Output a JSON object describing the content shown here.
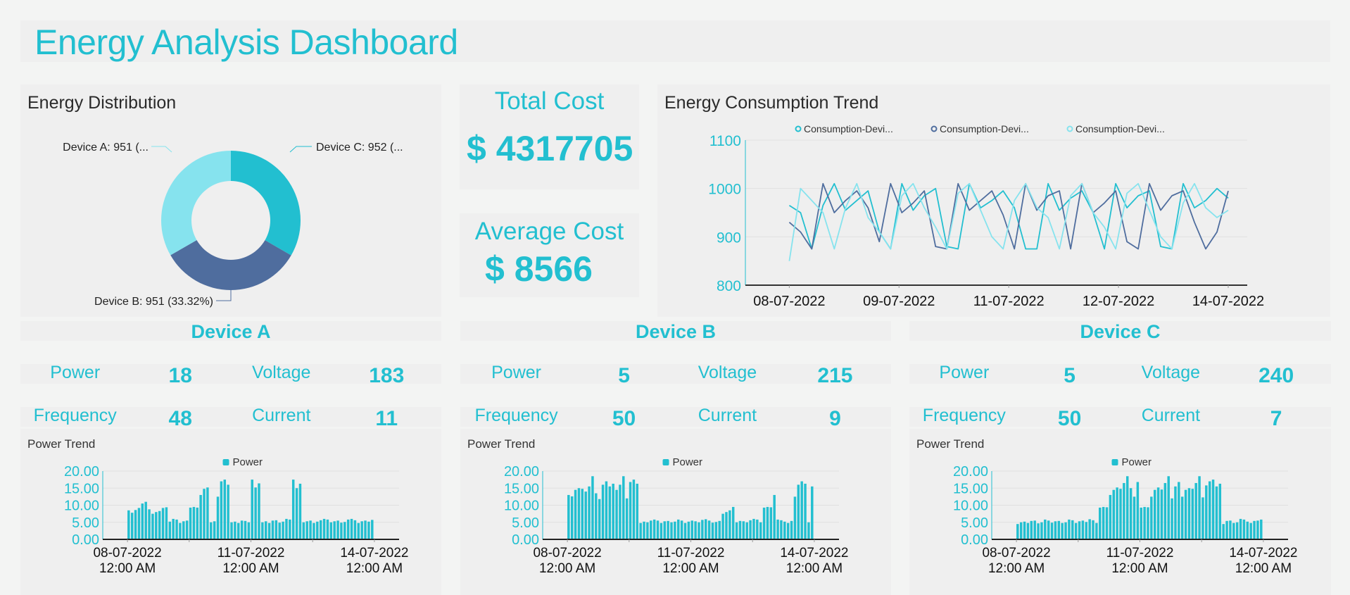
{
  "header": {
    "title": "Energy Analysis Dashboard"
  },
  "colors": {
    "accent": "#22bfd0",
    "device_a": "#86e3ee",
    "device_b": "#4f6d9e",
    "device_c": "#22bfd0",
    "panel": "#efefef",
    "background": "#f3f4f3"
  },
  "distribution": {
    "title": "Energy Distribution",
    "chart_data": {
      "type": "pie",
      "donut": true,
      "slices": [
        {
          "name": "Device C",
          "value": 952,
          "label": "Device C: 952 (...",
          "color": "#22bfd0"
        },
        {
          "name": "Device B",
          "value": 951,
          "label": "Device B: 951 (33.32%)",
          "color": "#4f6d9e"
        },
        {
          "name": "Device A",
          "value": 951,
          "label": "Device A: 951 (...",
          "color": "#86e3ee"
        }
      ]
    }
  },
  "total_cost": {
    "label": "Total Cost",
    "value": "$ 4317705"
  },
  "average_cost": {
    "label": "Average Cost",
    "value": "$ 8566"
  },
  "trend": {
    "title": "Energy Consumption Trend",
    "chart_data": {
      "type": "line",
      "x_range": [
        "08-07-2022",
        "14-07-2022"
      ],
      "x_tick_labels": [
        "08-07-2022",
        "09-07-2022",
        "11-07-2022",
        "12-07-2022",
        "14-07-2022"
      ],
      "ylim": [
        800,
        1100
      ],
      "y_ticks": [
        "800",
        "900",
        "1000",
        "1100"
      ],
      "grid": true,
      "legend_position": "top",
      "series": [
        {
          "name": "Consumption-Devi...",
          "color": "#22bfd0",
          "values": [
            965,
            950,
            875,
            965,
            1010,
            955,
            975,
            995,
            910,
            875,
            1010,
            955,
            985,
            1000,
            880,
            875,
            1010,
            960,
            975,
            995,
            960,
            875,
            875,
            1010,
            955,
            980,
            995,
            950,
            875,
            1010,
            960,
            985,
            995,
            880,
            875,
            1010,
            960,
            975,
            1000,
            980
          ]
        },
        {
          "name": "Consumption-Devi...",
          "color": "#4f6d9e",
          "values": [
            930,
            910,
            875,
            1010,
            950,
            975,
            995,
            960,
            890,
            1010,
            950,
            970,
            995,
            880,
            875,
            1010,
            955,
            975,
            995,
            945,
            875,
            1010,
            955,
            985,
            995,
            875,
            1010,
            950,
            970,
            995,
            890,
            875,
            1010,
            955,
            985,
            995,
            930,
            875,
            910,
            995
          ]
        },
        {
          "name": "Consumption-Devi...",
          "color": "#86e3ee",
          "values": [
            850,
            1000,
            975,
            950,
            875,
            960,
            1010,
            940,
            910,
            875,
            985,
            1010,
            960,
            920,
            875,
            990,
            1010,
            955,
            900,
            875,
            975,
            1010,
            960,
            940,
            875,
            985,
            1010,
            950,
            920,
            875,
            990,
            1010,
            955,
            900,
            875,
            970,
            1010,
            960,
            940,
            955
          ]
        }
      ]
    }
  },
  "devices": [
    {
      "name": "Device A",
      "metrics": {
        "power_label": "Power",
        "power": "18",
        "voltage_label": "Voltage",
        "voltage": "183",
        "frequency_label": "Frequency",
        "frequency": "48",
        "current_label": "Current",
        "current": "11"
      },
      "chart_title": "Power Trend",
      "chart_data": {
        "type": "bar",
        "legend": "Power",
        "color": "#22bfd0",
        "ylim": [
          0,
          20
        ],
        "y_ticks": [
          "0.00",
          "5.00",
          "10.00",
          "15.00",
          "20.00"
        ],
        "x_tick_labels": [
          [
            "08-07-2022",
            "12:00 AM"
          ],
          [
            "11-07-2022",
            "12:00 AM"
          ],
          [
            "14-07-2022",
            "12:00 AM"
          ]
        ],
        "x_range": [
          "08-07-2022",
          "14-07-2022"
        ],
        "interval": "2 hours",
        "values": [
          8.5,
          7.8,
          8.6,
          9.2,
          10.5,
          11,
          8.8,
          7.5,
          8,
          8.3,
          9.2,
          9.4,
          5.2,
          6,
          5.8,
          4.8,
          5.3,
          5.5,
          9.3,
          9.5,
          9.3,
          13,
          14.8,
          15.2,
          5,
          5.3,
          12.5,
          17,
          17.5,
          16,
          5,
          5.2,
          4.8,
          5.5,
          5.4,
          5,
          17.5,
          15.2,
          16.4,
          5,
          5.3,
          4.8,
          5.5,
          5.6,
          4.9,
          5.2,
          6,
          5.8,
          17.5,
          15,
          16.3,
          5,
          5.3,
          5.5,
          4.8,
          5.2,
          5.6,
          6,
          5.8,
          5,
          5.3,
          5.5,
          4.9,
          5.1,
          5.8,
          6,
          5.6,
          4.8,
          5.3,
          5.5,
          5.2,
          5.7
        ]
      }
    },
    {
      "name": "Device B",
      "metrics": {
        "power_label": "Power",
        "power": "5",
        "voltage_label": "Voltage",
        "voltage": "215",
        "frequency_label": "Frequency",
        "frequency": "50",
        "current_label": "Current",
        "current": "9"
      },
      "chart_title": "Power Trend",
      "chart_data": {
        "type": "bar",
        "legend": "Power",
        "color": "#22bfd0",
        "ylim": [
          0,
          20
        ],
        "y_ticks": [
          "0.00",
          "5.00",
          "10.00",
          "15.00",
          "20.00"
        ],
        "x_tick_labels": [
          [
            "08-07-2022",
            "12:00 AM"
          ],
          [
            "11-07-2022",
            "12:00 AM"
          ],
          [
            "14-07-2022",
            "12:00 AM"
          ]
        ],
        "x_range": [
          "08-07-2022",
          "14-07-2022"
        ],
        "interval": "2 hours",
        "values": [
          13,
          12.6,
          14.5,
          15,
          14.8,
          14,
          15.5,
          18.5,
          13.5,
          11.8,
          16,
          17,
          15.5,
          16.3,
          14.5,
          16,
          18.5,
          12,
          16.8,
          17.5,
          16.3,
          4.8,
          5.2,
          5,
          5.5,
          5.8,
          5.5,
          4.8,
          5.3,
          5.4,
          5,
          5.2,
          5.8,
          5.5,
          4.8,
          5.2,
          5.5,
          5.3,
          5,
          5.7,
          5.9,
          5.5,
          4.9,
          5.1,
          5.4,
          7.5,
          8,
          8.5,
          9.5,
          5,
          5.4,
          5.3,
          5,
          5.6,
          6,
          5.8,
          5,
          9.3,
          9.5,
          9.4,
          13,
          5.8,
          5.6,
          5.2,
          4.8,
          5.4,
          12.5,
          16,
          17,
          16.3,
          5,
          15.5
        ]
      }
    },
    {
      "name": "Device C",
      "metrics": {
        "power_label": "Power",
        "power": "5",
        "voltage_label": "Voltage",
        "voltage": "240",
        "frequency_label": "Frequency",
        "frequency": "50",
        "current_label": "Current",
        "current": "7"
      },
      "chart_title": "Power Trend",
      "chart_data": {
        "type": "bar",
        "legend": "Power",
        "color": "#22bfd0",
        "ylim": [
          0,
          20
        ],
        "y_ticks": [
          "0.00",
          "5.00",
          "10.00",
          "15.00",
          "20.00"
        ],
        "x_tick_labels": [
          [
            "08-07-2022",
            "12:00 AM"
          ],
          [
            "11-07-2022",
            "12:00 AM"
          ],
          [
            "14-07-2022",
            "12:00 AM"
          ]
        ],
        "x_range": [
          "08-07-2022",
          "14-07-2022"
        ],
        "interval": "2 hours",
        "values": [
          4.5,
          5,
          5.2,
          4.8,
          5.4,
          5.5,
          4.7,
          5,
          5.8,
          5.5,
          4.9,
          5.3,
          5.4,
          4.8,
          5,
          5.8,
          5.6,
          4.8,
          5.3,
          5.5,
          5.1,
          5.9,
          5.6,
          4.8,
          9.3,
          9.5,
          9.4,
          13,
          14.5,
          15.2,
          14.8,
          16.5,
          18.5,
          15,
          12.5,
          16.8,
          9.3,
          9.5,
          9.4,
          12.5,
          14.5,
          15.2,
          14.6,
          16.5,
          18.5,
          12,
          15.5,
          16.8,
          12.5,
          14.5,
          15,
          14.8,
          16.5,
          18.5,
          12.3,
          15.8,
          17,
          17.5,
          15.5,
          16.3,
          4.5,
          5.4,
          5.5,
          4.8,
          5,
          6,
          5.8,
          5.2,
          4.8,
          5.4,
          5.5,
          5.8
        ]
      }
    }
  ]
}
